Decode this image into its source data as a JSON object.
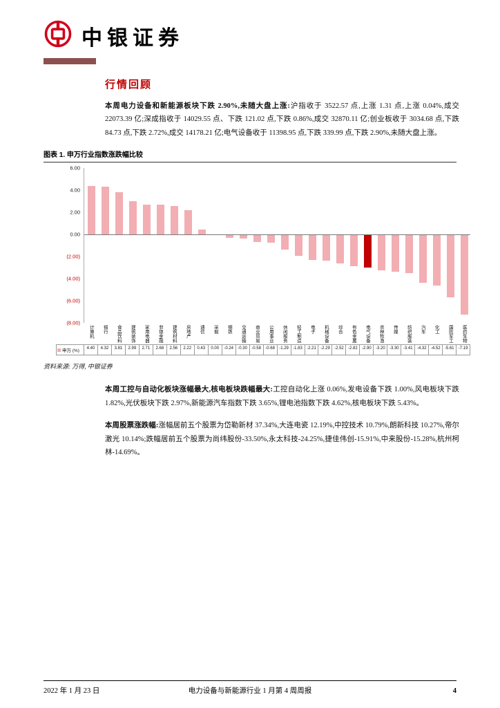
{
  "header": {
    "brand": "中银证券"
  },
  "content": {
    "section_title": "行情回顾",
    "para1_lead": "本周电力设备和新能源板块下跌 2.90%,未随大盘上涨:",
    "para1_body": "沪指收于 3522.57 点,上涨 1.31 点,上涨 0.04%,成交 22073.39 亿;深成指收于 14029.55 点、下跌 121.02 点,下跌 0.86%,成交 32870.11 亿;创业板收于 3034.68 点,下跌 84.73 点,下跌 2.72%,成交 14178.21 亿;电气设备收于 11398.95 点,下跌 339.99 点,下跌 2.90%,未随大盘上涨。",
    "para2_lead": "本周工控与自动化板块涨幅最大,核电板块跌幅最大:",
    "para2_body": "工控自动化上涨 0.06%,发电设备下跌 1.00%,风电板块下跌 1.82%,光伏板块下跌 2.97%,新能源汽车指数下跌 3.65%,锂电池指数下跌 4.62%,核电板块下跌 5.43%。",
    "para3_lead": "本周股票涨跌幅:",
    "para3_body": "涨幅居前五个股票为岱勒新材 37.34%,大连电瓷 12.19%,中控技术 10.79%,朗新科技 10.27%,帝尔激光 10.14%;跌幅居前五个股票为尚纬股份-33.50%,永太科技-24.25%,捷佳伟创-15.91%,中来股份-15.28%,杭州柯林-14.69%。"
  },
  "figure": {
    "caption": "图表 1. 申万行业指数涨跌幅比较",
    "source": "资料来源: 万得, 中银证券"
  },
  "chart_data": {
    "type": "bar",
    "title": "申万行业指数涨跌幅比较",
    "legend_label": "申万 (%)",
    "categories": [
      "计算机",
      "银行",
      "食品饮料",
      "建筑装饰",
      "家用电器",
      "非银金融",
      "建筑材料",
      "房地产",
      "通信",
      "采掘",
      "钢铁",
      "交通运输",
      "商业贸易",
      "公用事业",
      "休闲服务",
      "轻工制造",
      "电子",
      "机械设备",
      "综合",
      "有色金属",
      "电气设备",
      "农林牧渔",
      "传媒",
      "纺织服装",
      "汽车",
      "化工",
      "国防军工",
      "医药生物"
    ],
    "values": [
      4.4,
      4.32,
      3.81,
      2.99,
      2.71,
      2.68,
      2.56,
      2.22,
      0.43,
      0.0,
      -0.24,
      -0.3,
      -0.58,
      -0.68,
      -1.29,
      -1.83,
      -2.21,
      -2.29,
      -2.52,
      -2.82,
      -2.9,
      -3.2,
      -3.3,
      -3.41,
      -4.32,
      -4.52,
      -5.61,
      -7.19
    ],
    "highlight_category": "电气设备",
    "xlabel": "",
    "ylabel": "",
    "ylim": [
      -8,
      6
    ],
    "y_tick_values": [
      6,
      4,
      2,
      0,
      -2,
      -4,
      -6,
      -8
    ],
    "y_tick_labels": [
      "6.00",
      "4.00",
      "2.00",
      "0.00",
      "(2.00)",
      "(4.00)",
      "(6.00)",
      "(8.00)"
    ],
    "grid": false,
    "legend_position": "bottom-table",
    "colors": {
      "bar": "#f2aeb2",
      "highlight": "#c00000",
      "negative_tick": "#c00000"
    }
  },
  "footer": {
    "date": "2022 年 1 月 23 日",
    "title": "电力设备与新能源行业 1 月第 4 周周报",
    "page_number": "4"
  }
}
